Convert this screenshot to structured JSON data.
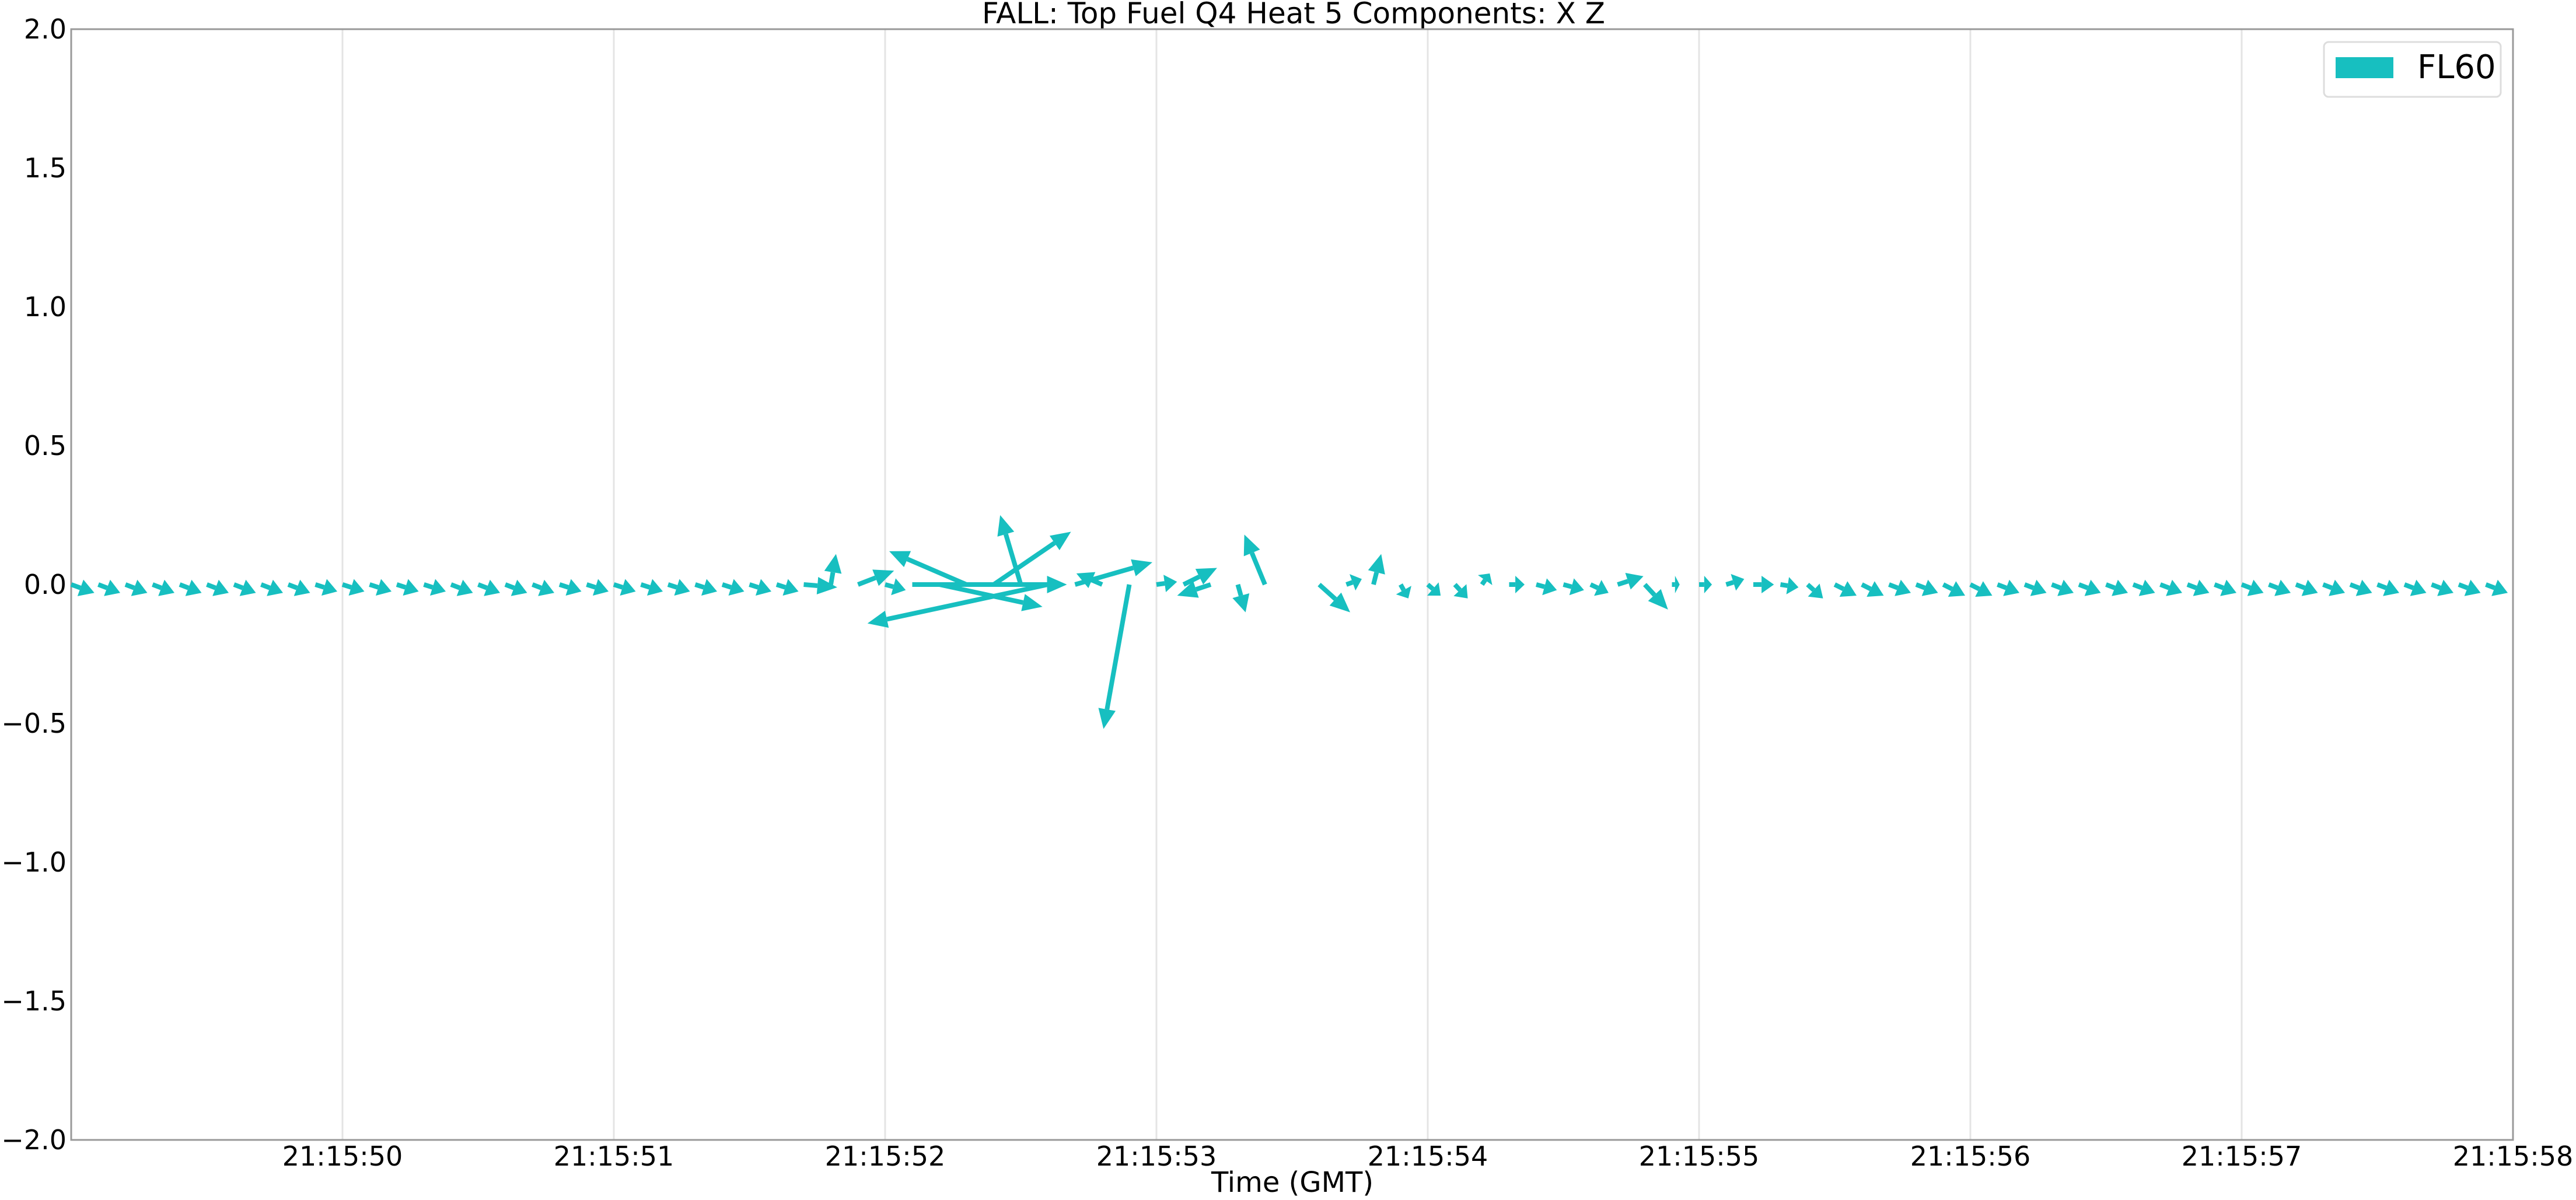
{
  "chart_data": {
    "type": "quiver",
    "title": "FALL: Top Fuel Q4 Heat 5 Components: X Z",
    "xlabel": "Time (GMT)",
    "ylabel": "",
    "x_ticks": [
      "21:15:50",
      "21:15:51",
      "21:15:52",
      "21:15:53",
      "21:15:54",
      "21:15:55",
      "21:15:56",
      "21:15:57",
      "21:15:58"
    ],
    "xlim": [
      "21:15:49",
      "21:15:58"
    ],
    "y_ticks": [
      "2.0",
      "1.5",
      "1.0",
      "0.5",
      "0.0",
      "−0.5",
      "−1.0",
      "−1.5",
      "−2.0"
    ],
    "ylim": [
      -2.0,
      2.0
    ],
    "grid": "vertical",
    "legend_position": "top-right",
    "series": [
      {
        "name": "FL60",
        "color": "#17bfc0",
        "arrows": [
          {
            "t": "21:15:49.00",
            "u": 0.09,
            "v": -0.03
          },
          {
            "t": "21:15:49.10",
            "u": 0.085,
            "v": -0.03
          },
          {
            "t": "21:15:49.20",
            "u": 0.085,
            "v": -0.03
          },
          {
            "t": "21:15:49.30",
            "u": 0.085,
            "v": -0.03
          },
          {
            "t": "21:15:49.40",
            "u": 0.085,
            "v": -0.03
          },
          {
            "t": "21:15:49.50",
            "u": 0.085,
            "v": -0.03
          },
          {
            "t": "21:15:49.60",
            "u": 0.085,
            "v": -0.03
          },
          {
            "t": "21:15:49.70",
            "u": 0.085,
            "v": -0.03
          },
          {
            "t": "21:15:49.80",
            "u": 0.085,
            "v": -0.03
          },
          {
            "t": "21:15:49.90",
            "u": 0.085,
            "v": -0.025
          },
          {
            "t": "21:15:50.00",
            "u": 0.085,
            "v": -0.025
          },
          {
            "t": "21:15:50.10",
            "u": 0.085,
            "v": -0.025
          },
          {
            "t": "21:15:50.20",
            "u": 0.085,
            "v": -0.025
          },
          {
            "t": "21:15:50.30",
            "u": 0.085,
            "v": -0.025
          },
          {
            "t": "21:15:50.40",
            "u": 0.085,
            "v": -0.03
          },
          {
            "t": "21:15:50.50",
            "u": 0.085,
            "v": -0.03
          },
          {
            "t": "21:15:50.60",
            "u": 0.085,
            "v": -0.03
          },
          {
            "t": "21:15:50.70",
            "u": 0.085,
            "v": -0.03
          },
          {
            "t": "21:15:50.80",
            "u": 0.085,
            "v": -0.025
          },
          {
            "t": "21:15:50.90",
            "u": 0.085,
            "v": -0.025
          },
          {
            "t": "21:15:51.00",
            "u": 0.085,
            "v": -0.025
          },
          {
            "t": "21:15:51.10",
            "u": 0.085,
            "v": -0.025
          },
          {
            "t": "21:15:51.20",
            "u": 0.085,
            "v": -0.025
          },
          {
            "t": "21:15:51.30",
            "u": 0.085,
            "v": -0.025
          },
          {
            "t": "21:15:51.40",
            "u": 0.085,
            "v": -0.025
          },
          {
            "t": "21:15:51.50",
            "u": 0.085,
            "v": -0.025
          },
          {
            "t": "21:15:51.60",
            "u": 0.085,
            "v": -0.025
          },
          {
            "t": "21:15:51.70",
            "u": 0.13,
            "v": -0.01
          },
          {
            "t": "21:15:51.80",
            "u": 0.02,
            "v": 0.11
          },
          {
            "t": "21:15:51.90",
            "u": 0.14,
            "v": 0.05
          },
          {
            "t": "21:15:52.00",
            "u": 0.08,
            "v": -0.02
          },
          {
            "t": "21:15:52.10",
            "u": 0.6,
            "v": 0.0
          },
          {
            "t": "21:15:52.20",
            "u": 0.4,
            "v": -0.08
          },
          {
            "t": "21:15:52.30",
            "u": -0.3,
            "v": 0.12
          },
          {
            "t": "21:15:52.40",
            "u": 0.3,
            "v": 0.19
          },
          {
            "t": "21:15:52.50",
            "u": -0.08,
            "v": 0.25
          },
          {
            "t": "21:15:52.60",
            "u": -0.7,
            "v": -0.14
          },
          {
            "t": "21:15:52.70",
            "u": 0.3,
            "v": 0.08
          },
          {
            "t": "21:15:52.80",
            "u": -0.1,
            "v": 0.04
          },
          {
            "t": "21:15:52.90",
            "u": -0.1,
            "v": -0.52
          },
          {
            "t": "21:15:53.00",
            "u": 0.08,
            "v": 0.01
          },
          {
            "t": "21:15:53.10",
            "u": 0.13,
            "v": 0.06
          },
          {
            "t": "21:15:53.20",
            "u": -0.13,
            "v": -0.04
          },
          {
            "t": "21:15:53.30",
            "u": 0.03,
            "v": -0.1
          },
          {
            "t": "21:15:53.40",
            "u": -0.08,
            "v": 0.18
          },
          {
            "t": "21:15:53.50",
            "u": 0.0,
            "v": 0.0
          },
          {
            "t": "21:15:53.60",
            "u": 0.12,
            "v": -0.1
          },
          {
            "t": "21:15:53.70",
            "u": 0.06,
            "v": 0.02
          },
          {
            "t": "21:15:53.80",
            "u": 0.03,
            "v": 0.11
          },
          {
            "t": "21:15:53.90",
            "u": 0.03,
            "v": -0.05
          },
          {
            "t": "21:15:54.00",
            "u": 0.05,
            "v": -0.04
          },
          {
            "t": "21:15:54.10",
            "u": 0.05,
            "v": -0.05
          },
          {
            "t": "21:15:54.20",
            "u": 0.03,
            "v": 0.04
          },
          {
            "t": "21:15:54.30",
            "u": 0.06,
            "v": 0.0
          },
          {
            "t": "21:15:54.40",
            "u": 0.08,
            "v": -0.02
          },
          {
            "t": "21:15:54.50",
            "u": 0.08,
            "v": -0.02
          },
          {
            "t": "21:15:54.60",
            "u": 0.07,
            "v": -0.03
          },
          {
            "t": "21:15:54.70",
            "u": 0.1,
            "v": 0.03
          },
          {
            "t": "21:15:54.80",
            "u": 0.09,
            "v": -0.09
          },
          {
            "t": "21:15:54.90",
            "u": 0.03,
            "v": 0.0
          },
          {
            "t": "21:15:55.00",
            "u": 0.05,
            "v": 0.0
          },
          {
            "t": "21:15:55.10",
            "u": 0.07,
            "v": 0.02
          },
          {
            "t": "21:15:55.20",
            "u": 0.08,
            "v": 0.0
          },
          {
            "t": "21:15:55.30",
            "u": 0.07,
            "v": -0.01
          },
          {
            "t": "21:15:55.40",
            "u": 0.06,
            "v": -0.05
          },
          {
            "t": "21:15:55.50",
            "u": 0.085,
            "v": -0.04
          },
          {
            "t": "21:15:55.60",
            "u": 0.085,
            "v": -0.04
          },
          {
            "t": "21:15:55.70",
            "u": 0.085,
            "v": -0.03
          },
          {
            "t": "21:15:55.80",
            "u": 0.085,
            "v": -0.03
          },
          {
            "t": "21:15:55.90",
            "u": 0.085,
            "v": -0.04
          },
          {
            "t": "21:15:56.00",
            "u": 0.085,
            "v": -0.04
          },
          {
            "t": "21:15:56.10",
            "u": 0.085,
            "v": -0.03
          },
          {
            "t": "21:15:56.20",
            "u": 0.085,
            "v": -0.03
          },
          {
            "t": "21:15:56.30",
            "u": 0.085,
            "v": -0.03
          },
          {
            "t": "21:15:56.40",
            "u": 0.085,
            "v": -0.03
          },
          {
            "t": "21:15:56.50",
            "u": 0.085,
            "v": -0.03
          },
          {
            "t": "21:15:56.60",
            "u": 0.085,
            "v": -0.03
          },
          {
            "t": "21:15:56.70",
            "u": 0.085,
            "v": -0.03
          },
          {
            "t": "21:15:56.80",
            "u": 0.085,
            "v": -0.03
          },
          {
            "t": "21:15:56.90",
            "u": 0.085,
            "v": -0.03
          },
          {
            "t": "21:15:57.00",
            "u": 0.085,
            "v": -0.03
          },
          {
            "t": "21:15:57.10",
            "u": 0.085,
            "v": -0.03
          },
          {
            "t": "21:15:57.20",
            "u": 0.085,
            "v": -0.03
          },
          {
            "t": "21:15:57.30",
            "u": 0.085,
            "v": -0.03
          },
          {
            "t": "21:15:57.40",
            "u": 0.085,
            "v": -0.03
          },
          {
            "t": "21:15:57.50",
            "u": 0.085,
            "v": -0.03
          },
          {
            "t": "21:15:57.60",
            "u": 0.085,
            "v": -0.03
          },
          {
            "t": "21:15:57.70",
            "u": 0.085,
            "v": -0.03
          },
          {
            "t": "21:15:57.80",
            "u": 0.085,
            "v": -0.03
          },
          {
            "t": "21:15:57.90",
            "u": 0.085,
            "v": -0.03
          }
        ]
      }
    ]
  }
}
